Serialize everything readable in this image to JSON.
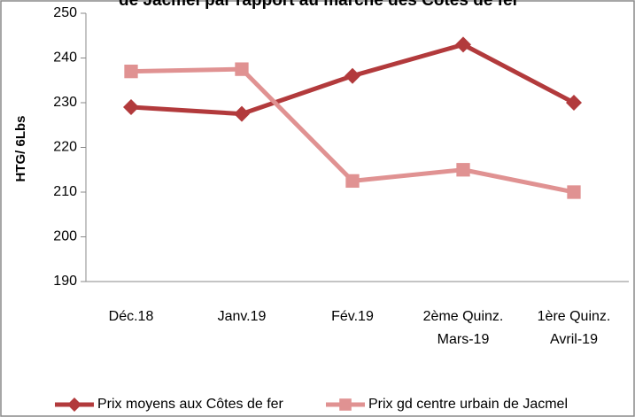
{
  "chart_data": {
    "type": "line",
    "title": "de Jacmel par rapport au marché des Côtes de fer",
    "y_label": "HTG/ 6Lbs",
    "categories": [
      "Déc.18",
      "Janv.19",
      "Fév.19",
      "2ème  Quinz.\nMars-19",
      "1ère  Quinz.\nAvril-19"
    ],
    "series": [
      {
        "name": "Prix moyens aux Côtes de fer",
        "color": "#b23a3c",
        "marker": "diamond",
        "values": [
          229,
          227.5,
          236,
          243,
          230
        ]
      },
      {
        "name": "Prix gd centre urbain de Jacmel",
        "color": "#e09292",
        "marker": "square",
        "values": [
          237,
          237.5,
          212.5,
          215,
          210
        ]
      }
    ],
    "ylim": [
      190,
      250
    ],
    "yticks": [
      190,
      200,
      210,
      220,
      230,
      240,
      250
    ],
    "grid": false
  }
}
